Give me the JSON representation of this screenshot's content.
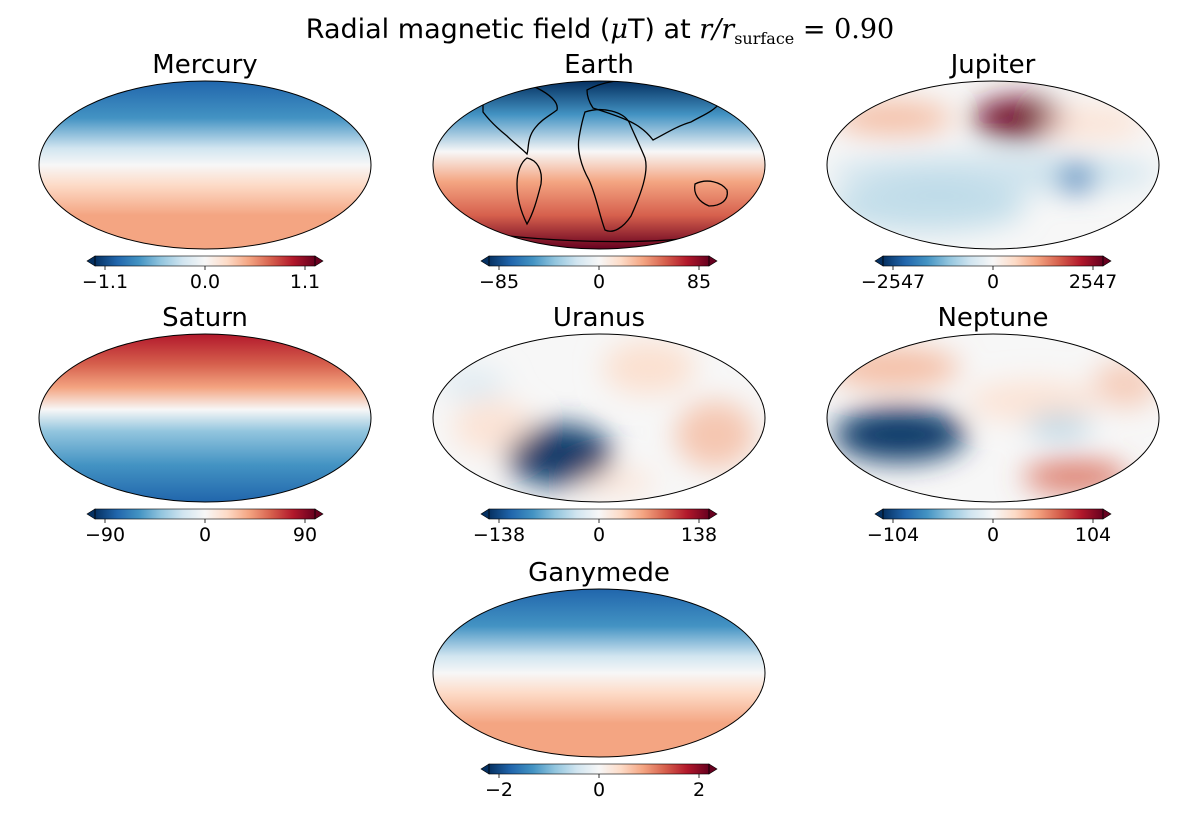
{
  "figure": {
    "title_prefix": "Radial magnetic field (",
    "title_mu": "μ",
    "title_mid": "T) at ",
    "title_r": "r",
    "title_slash": "/",
    "title_r2": "r",
    "title_sub": "surface",
    "title_eq": " = ",
    "title_val": "0.90"
  },
  "chart_data": [
    {
      "type": "heatmap",
      "projection": "mollweide",
      "title": "Mercury",
      "colormap": "RdBu_r",
      "clim": [
        -1.1,
        1.1
      ],
      "ticks": [
        "−1.1",
        "0.0",
        "1.1"
      ],
      "pattern": "axial-dipole-negative-north",
      "peak_abs": 1.1
    },
    {
      "type": "heatmap",
      "projection": "mollweide",
      "title": "Earth",
      "colormap": "RdBu_r",
      "clim": [
        -85,
        85
      ],
      "ticks": [
        "−85",
        "0",
        "85"
      ],
      "pattern": "dipole-with-coastlines",
      "coastlines": true,
      "peak_abs": 85
    },
    {
      "type": "heatmap",
      "projection": "mollweide",
      "title": "Jupiter",
      "colormap": "RdBu_r",
      "clim": [
        -2547,
        2547
      ],
      "ticks": [
        "−2547",
        "0",
        "2547"
      ],
      "pattern": "multipolar",
      "peak_abs": 2547
    },
    {
      "type": "heatmap",
      "projection": "mollweide",
      "title": "Saturn",
      "colormap": "RdBu_r",
      "clim": [
        -90,
        90
      ],
      "ticks": [
        "−90",
        "0",
        "90"
      ],
      "pattern": "axial-dipole-positive-north",
      "peak_abs": 90
    },
    {
      "type": "heatmap",
      "projection": "mollweide",
      "title": "Uranus",
      "colormap": "RdBu_r",
      "clim": [
        -138,
        138
      ],
      "ticks": [
        "−138",
        "0",
        "138"
      ],
      "pattern": "tilted-multipolar",
      "peak_abs": 138
    },
    {
      "type": "heatmap",
      "projection": "mollweide",
      "title": "Neptune",
      "colormap": "RdBu_r",
      "clim": [
        -104,
        104
      ],
      "ticks": [
        "−104",
        "0",
        "104"
      ],
      "pattern": "tilted-multipolar",
      "peak_abs": 104
    },
    {
      "type": "heatmap",
      "projection": "mollweide",
      "title": "Ganymede",
      "colormap": "RdBu_r",
      "clim": [
        -2,
        2
      ],
      "ticks": [
        "−2",
        "0",
        "2"
      ],
      "pattern": "axial-dipole-negative-north",
      "peak_abs": 2
    }
  ],
  "colors": {
    "cmap_stops": [
      "#053061",
      "#2166ac",
      "#4393c3",
      "#92c5de",
      "#d1e5f0",
      "#f7f7f7",
      "#fddbc7",
      "#f4a582",
      "#d6604d",
      "#b2182b",
      "#67001f"
    ]
  }
}
